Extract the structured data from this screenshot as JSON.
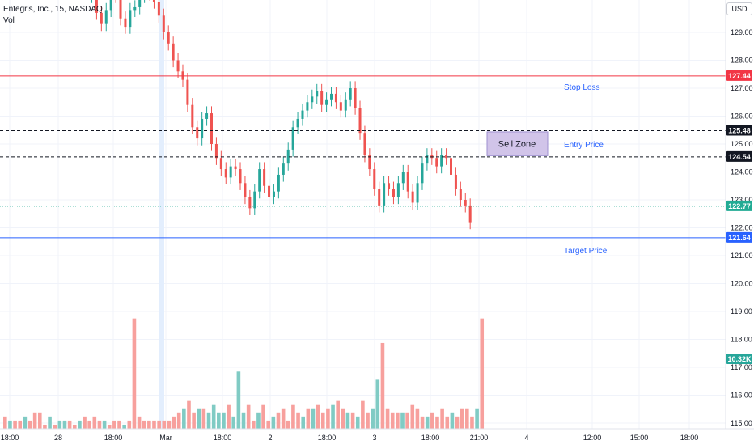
{
  "header": {
    "title": "Entegris, Inc., 15, NASDAQ",
    "volume_label": "Vol"
  },
  "currency_button": "USD",
  "colors": {
    "up": "#26a69a",
    "down": "#ef5350",
    "up_vol": "#80cbc4",
    "down_vol": "#f7a09d",
    "stop_loss": "#f23645",
    "target": "#2962ff",
    "last": "#22ab94",
    "zone_fill": "#d1c4e9",
    "zone_border": "#9e8fd0",
    "annotation_text": "#2962ff",
    "price_scale_label_dark": "#131722",
    "highlight_column": "#e3eefd"
  },
  "chart_data": {
    "type": "candlestick",
    "title": "Entegris, Inc., 15, NASDAQ",
    "price_axis": {
      "min": 114.8,
      "max": 130.2,
      "ticks": [
        "115.00",
        "116.00",
        "117.00",
        "118.00",
        "119.00",
        "120.00",
        "121.00",
        "122.00",
        "123.00",
        "124.00",
        "125.00",
        "126.00",
        "127.00",
        "128.00",
        "129.00"
      ]
    },
    "time_axis_labels": [
      "18:00",
      "28",
      "18:00",
      "Mar",
      "18:00",
      "2",
      "18:00",
      "3",
      "18:00",
      "21:00",
      "4",
      "12:00",
      "15:00",
      "18:00"
    ],
    "levels": [
      {
        "name": "Stop Loss",
        "value": 127.44,
        "style": "solid",
        "color": "#f23645"
      },
      {
        "name": "Entry Price",
        "value": 125.48,
        "style": "dashed",
        "color": "#131722"
      },
      {
        "name": "",
        "value": 124.54,
        "style": "dashed",
        "color": "#131722"
      },
      {
        "name": "Target Price",
        "value": 121.64,
        "style": "solid",
        "color": "#2962ff"
      },
      {
        "name": "",
        "value": 122.77,
        "style": "dotted",
        "color": "#22ab94"
      }
    ],
    "zone": {
      "label": "Sell Zone",
      "from": 124.54,
      "to": 125.48
    },
    "scale_badges": [
      {
        "text": "127.44",
        "value": 127.44,
        "color": "#f23645"
      },
      {
        "text": "125.48",
        "value": 125.48,
        "color": "#131722"
      },
      {
        "text": "124.54",
        "value": 124.54,
        "color": "#131722"
      },
      {
        "text": "122.77",
        "value": 122.77,
        "color": "#22ab94"
      },
      {
        "text": "121.64",
        "value": 121.64,
        "color": "#2962ff"
      }
    ],
    "volume_badge": "10.32K",
    "annotations": [
      "Stop Loss",
      "Entry Price",
      "Target Price"
    ],
    "close_path": [
      130.3,
      130.4,
      129.7,
      129.3,
      129.8,
      130.4,
      130.3,
      129.5,
      129.2,
      129.8,
      129.9,
      130.3,
      130.6,
      130.4,
      130.1,
      129.6,
      129.0,
      128.6,
      128.0,
      127.6,
      127.3,
      126.4,
      125.6,
      125.2,
      125.9,
      126.1,
      125.0,
      124.5,
      124.1,
      123.8,
      124.2,
      124.1,
      123.6,
      123.1,
      122.7,
      123.3,
      124.1,
      123.5,
      123.1,
      123.3,
      123.9,
      124.3,
      124.8,
      125.6,
      125.9,
      126.2,
      126.5,
      126.7,
      126.9,
      126.4,
      126.6,
      126.8,
      126.5,
      126.2,
      126.6,
      127.0,
      126.3,
      125.4,
      124.6,
      124.1,
      123.4,
      122.8,
      123.6,
      123.4,
      123.1,
      123.6,
      124.0,
      123.3,
      122.9,
      123.6,
      124.3,
      124.6,
      124.5,
      124.2,
      124.6,
      124.5,
      123.9,
      123.4,
      123.0,
      122.8,
      122.2
    ]
  },
  "volume_data": [
    3,
    2,
    2,
    2,
    3,
    2,
    4,
    4,
    1,
    3,
    1,
    2,
    2,
    2,
    1,
    2,
    3,
    2,
    3,
    2,
    2,
    1,
    2,
    2,
    1,
    2,
    27,
    3,
    2,
    2,
    2,
    2,
    2,
    2,
    3,
    4,
    5,
    7,
    4,
    5,
    5,
    4,
    6,
    4,
    4,
    6,
    3,
    14,
    4,
    6,
    2,
    4,
    6,
    2,
    3,
    4,
    5,
    2,
    6,
    4,
    3,
    5,
    5,
    6,
    4,
    5,
    6,
    7,
    5,
    4,
    4,
    3,
    7,
    4,
    5,
    12,
    21,
    5,
    4,
    4,
    4,
    4,
    6,
    5,
    3,
    3,
    4,
    3,
    5,
    3,
    4,
    3,
    5,
    5,
    3,
    5,
    27
  ]
}
